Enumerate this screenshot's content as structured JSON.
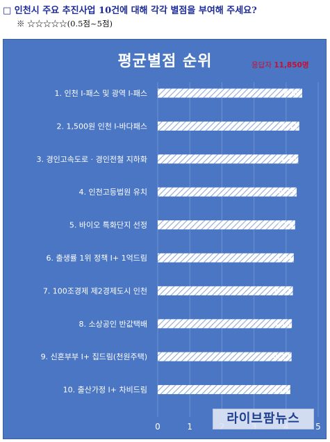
{
  "header": {
    "question": "□ 인천시 주요 추진사업 10건에 대해 각각 별점을 부여해 주세요?",
    "scale_note": "※ ☆☆☆☆☆(0.5점~5점)"
  },
  "respondents": {
    "label": "응답자",
    "count": "11,850명"
  },
  "watermark": "라이브팜뉴스",
  "colors": {
    "panel_background": "#4a76c4",
    "bar_fill": "#ffffff",
    "bar_hatch": "#8ea9d8",
    "title_text": "#ffffff",
    "respondents_text": "#c8102e",
    "question_text": "#1c2b99"
  },
  "chart_data": {
    "type": "bar",
    "orientation": "horizontal",
    "title": "평균별점 순위",
    "categories": [
      "1. 인천 I-패스 및 광역 I-패스",
      "2. 1,500원 인천 I-바다패스",
      "3. 경인고속도로 · 경인전철 지하화",
      "4. 인천고등법원 유치",
      "5. 바이오 특화단지 선정",
      "6. 출생률 1위 정책 I+ 1억드림",
      "7. 100조경제 제2경제도시 인천",
      "8. 소상공인 반값택배",
      "9. 신혼부부 I+ 집드림(천원주택)",
      "10. 출산가정 I+ 차비드림"
    ],
    "values": [
      4.5,
      4.41,
      4.38,
      4.33,
      4.28,
      4.24,
      4.21,
      4.18,
      4.17,
      4.13
    ],
    "value_labels": [
      "4.50",
      "4.41",
      "4.38",
      "4.33",
      "4.28",
      "4.24",
      "4.21",
      "4.18",
      "4.17",
      "4.13"
    ],
    "xlim": [
      0,
      5
    ],
    "x_ticks": [
      "0",
      "1",
      "2",
      "3",
      "4",
      "5"
    ],
    "grid": true,
    "bar_pattern": "diagonal-hatch"
  }
}
